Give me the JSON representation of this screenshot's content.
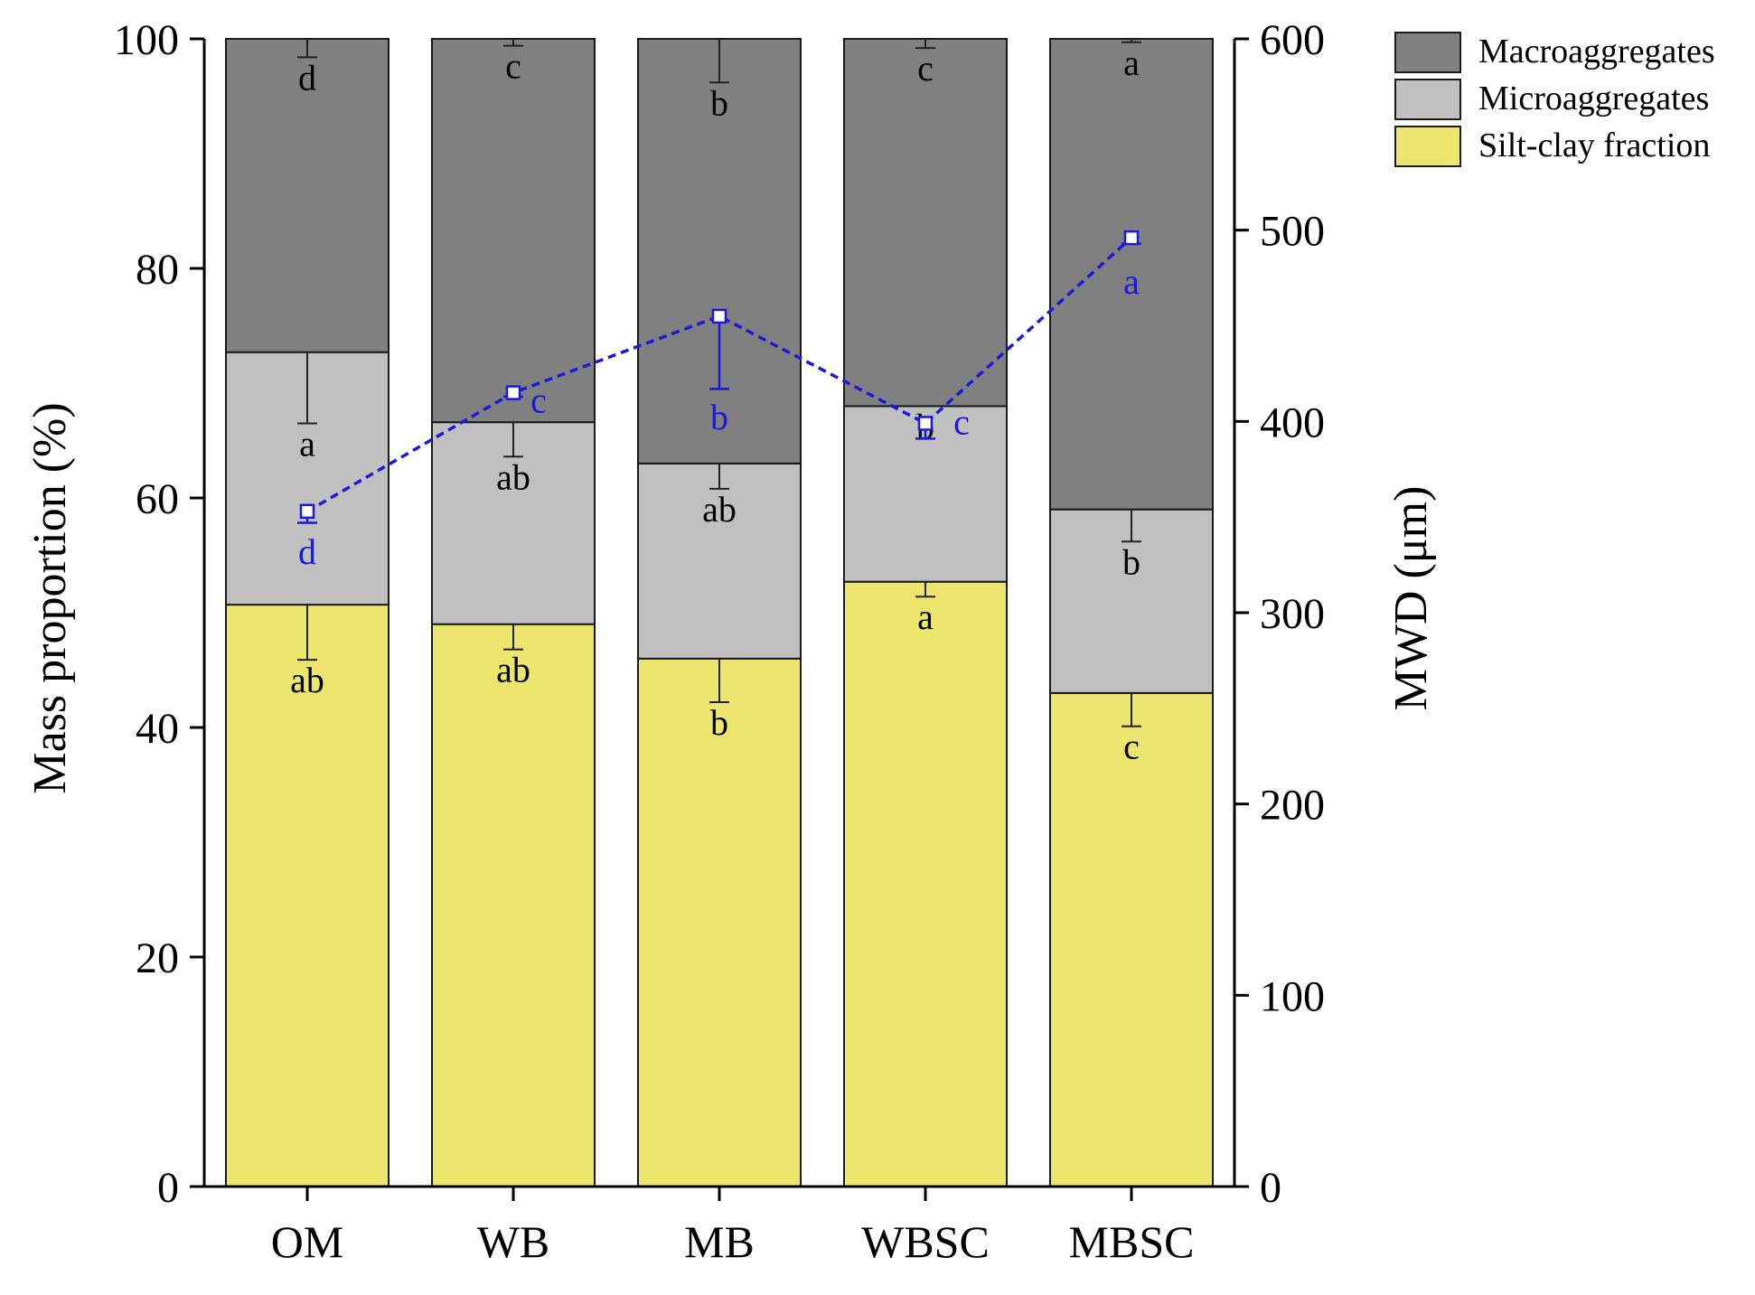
{
  "chart_data": {
    "type": "bar",
    "stacked": true,
    "categories": [
      "OM",
      "WB",
      "MB",
      "WBSC",
      "MBSC"
    ],
    "ylabel": "Mass proportion (%)",
    "y2label": "MWD (μm)",
    "ylim": [
      0,
      100
    ],
    "y2lim": [
      0,
      600
    ],
    "yticks": [
      "0",
      "20",
      "40",
      "60",
      "80",
      "100"
    ],
    "y2ticks": [
      "0",
      "100",
      "200",
      "300",
      "400",
      "500",
      "600"
    ],
    "legend_position": "top-right",
    "series": [
      {
        "name": "Silt-clay fraction",
        "color": "#ece66e",
        "values": [
          50.7,
          49.0,
          46.0,
          52.7,
          43.0
        ],
        "errors": [
          4.8,
          2.2,
          3.8,
          1.3,
          2.9
        ],
        "letters": [
          "ab",
          "ab",
          "b",
          "a",
          "c"
        ]
      },
      {
        "name": "Microaggregates",
        "color": "#c0c0c0",
        "values": [
          22.0,
          17.6,
          17.0,
          15.3,
          16.0
        ],
        "errors": [
          6.2,
          3.0,
          2.2,
          0.0,
          2.8
        ],
        "letters": [
          "a",
          "ab",
          "ab",
          "b",
          "b"
        ]
      },
      {
        "name": "Macroaggregates",
        "color": "#808080",
        "values": [
          27.3,
          33.4,
          37.0,
          32.0,
          41.0
        ],
        "errors": [
          1.6,
          0.6,
          3.8,
          0.8,
          0.3
        ],
        "letters": [
          "d",
          "c",
          "b",
          "c",
          "a"
        ]
      }
    ],
    "line_series": {
      "name": "MWD",
      "axis": "right",
      "color": "#1a1adb",
      "values": [
        353,
        415,
        455,
        399,
        496
      ],
      "errors": [
        6,
        2,
        38,
        8,
        3
      ],
      "letters": [
        "d",
        "c",
        "b",
        "c",
        "a"
      ]
    }
  }
}
